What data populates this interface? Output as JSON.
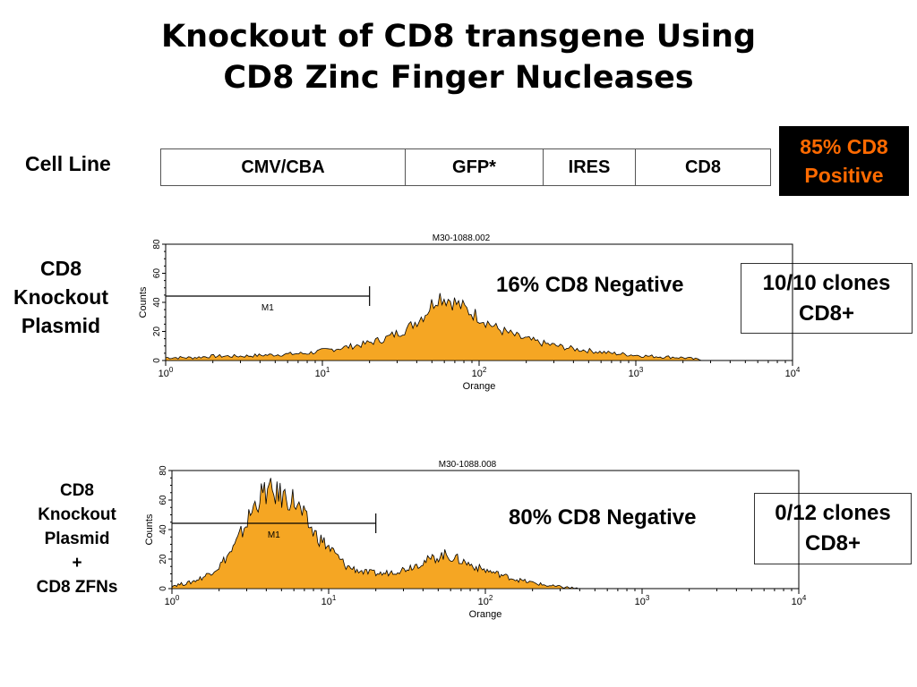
{
  "title": {
    "line1": "Knockout of CD8 transgene Using",
    "line2": "CD8 Zinc Finger Nucleases"
  },
  "cell_line": {
    "label": "Cell Line",
    "segments": [
      "CMV/CBA",
      "GFP*",
      "IRES",
      "CD8"
    ],
    "badge": {
      "line1": "85% CD8",
      "line2": "Positive"
    }
  },
  "colors": {
    "histogram_fill": "#f5a623",
    "badge_text": "#ff6a00",
    "badge_bg": "#000000"
  },
  "panel1": {
    "side_label": [
      "CD8",
      "Knockout",
      "Plasmid"
    ],
    "result_text": "16% CD8 Negative",
    "clones": {
      "line1": "10/10 clones",
      "line2": "CD8+"
    }
  },
  "panel2": {
    "side_label": [
      "CD8",
      "Knockout",
      "Plasmid",
      "+",
      "CD8 ZFNs"
    ],
    "result_text": "80% CD8 Negative",
    "clones": {
      "line1": "0/12 clones",
      "line2": "CD8+"
    }
  },
  "chart_data": [
    {
      "type": "area",
      "title": "M30-1088.002",
      "xlabel": "Orange",
      "ylabel": "Counts",
      "x_scale": "log",
      "xlim": [
        1,
        10000
      ],
      "ylim": [
        0,
        80
      ],
      "x_ticks": [
        "10^0",
        "10^1",
        "10^2",
        "10^3",
        "10^4"
      ],
      "y_ticks": [
        "0",
        "20",
        "40",
        "60",
        "80"
      ],
      "gate": {
        "label": "M1",
        "x_range": [
          1,
          20
        ]
      },
      "series": [
        {
          "x": [
            1,
            1.5,
            2,
            3,
            5,
            8,
            12,
            18,
            25,
            35,
            45,
            55,
            65,
            80,
            100,
            130,
            180,
            250,
            400,
            700,
            1200,
            2000,
            2800
          ],
          "y": [
            2,
            2,
            3,
            3,
            4,
            5,
            8,
            11,
            15,
            22,
            32,
            45,
            42,
            36,
            30,
            22,
            16,
            12,
            8,
            5,
            3,
            2,
            0
          ]
        }
      ]
    },
    {
      "type": "area",
      "title": "M30-1088.008",
      "xlabel": "Orange",
      "ylabel": "Counts",
      "x_scale": "log",
      "xlim": [
        1,
        10000
      ],
      "ylim": [
        0,
        80
      ],
      "x_ticks": [
        "10^0",
        "10^1",
        "10^2",
        "10^3",
        "10^4"
      ],
      "y_ticks": [
        "0",
        "20",
        "40",
        "60",
        "80"
      ],
      "gate": {
        "label": "M1",
        "x_range": [
          1,
          20
        ]
      },
      "series": [
        {
          "x": [
            1,
            1.3,
            1.6,
            2,
            2.5,
            3,
            3.5,
            4,
            5,
            6,
            7,
            8,
            10,
            13,
            17,
            22,
            30,
            40,
            55,
            70,
            90,
            120,
            160,
            250,
            400
          ],
          "y": [
            2,
            4,
            8,
            15,
            28,
            45,
            60,
            66,
            63,
            60,
            48,
            38,
            28,
            15,
            11,
            10,
            13,
            18,
            23,
            19,
            14,
            10,
            6,
            2,
            0
          ]
        }
      ]
    }
  ]
}
